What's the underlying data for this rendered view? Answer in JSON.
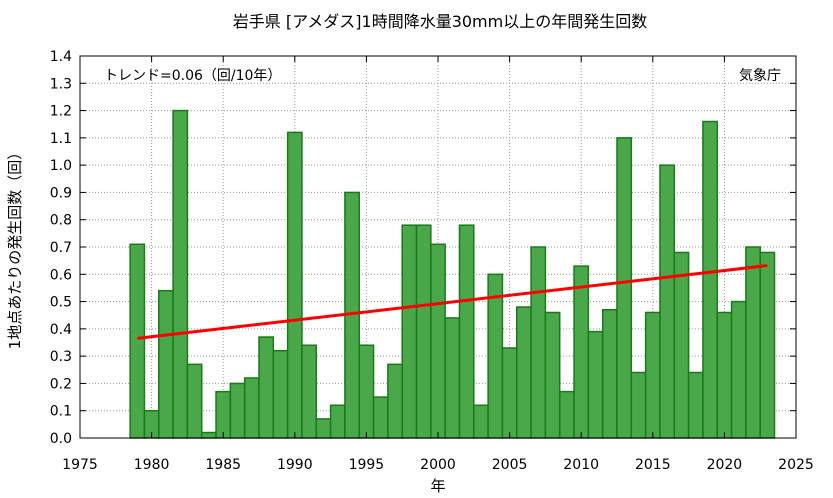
{
  "chart_data": {
    "type": "bar",
    "title": "岩手県 [アメダス]1時間降水量30mm以上の年間発生回数",
    "xlabel": "年",
    "ylabel": "1地点あたりの発生回数（回）",
    "trend_label": "トレンド=0.06（回/10年）",
    "source": "気象庁",
    "xlim": [
      1975,
      2025
    ],
    "ylim": [
      0.0,
      1.4
    ],
    "xticks": [
      "1975",
      "1980",
      "1985",
      "1990",
      "1995",
      "2000",
      "2005",
      "2010",
      "2015",
      "2020",
      "2025"
    ],
    "yticks": [
      "0.0",
      "0.1",
      "0.2",
      "0.3",
      "0.4",
      "0.5",
      "0.6",
      "0.7",
      "0.8",
      "0.9",
      "1.0",
      "1.1",
      "1.2",
      "1.3",
      "1.4"
    ],
    "grid": true,
    "bar_color": "#4aa84a",
    "bar_edge_color": "#1a7a1a",
    "trend_color": "#ff0000",
    "years": [
      1979,
      1980,
      1981,
      1982,
      1983,
      1984,
      1985,
      1986,
      1987,
      1988,
      1989,
      1990,
      1991,
      1992,
      1993,
      1994,
      1995,
      1996,
      1997,
      1998,
      1999,
      2000,
      2001,
      2002,
      2003,
      2004,
      2005,
      2006,
      2007,
      2008,
      2009,
      2010,
      2011,
      2012,
      2013,
      2014,
      2015,
      2016,
      2017,
      2018,
      2019,
      2020,
      2021,
      2022,
      2023
    ],
    "values": [
      0.71,
      0.1,
      0.54,
      1.2,
      0.27,
      0.02,
      0.17,
      0.2,
      0.22,
      0.37,
      0.32,
      1.12,
      0.34,
      0.07,
      0.12,
      0.9,
      0.34,
      0.15,
      0.27,
      0.78,
      0.78,
      0.71,
      0.44,
      0.78,
      0.12,
      0.6,
      0.33,
      0.48,
      0.7,
      0.46,
      0.17,
      0.63,
      0.39,
      0.47,
      1.1,
      0.24,
      0.46,
      1.0,
      0.68,
      0.24,
      1.16,
      0.46,
      0.5,
      0.7,
      0.68
    ],
    "trend": {
      "x": [
        1979,
        2023
      ],
      "y": [
        0.365,
        0.632
      ]
    }
  }
}
